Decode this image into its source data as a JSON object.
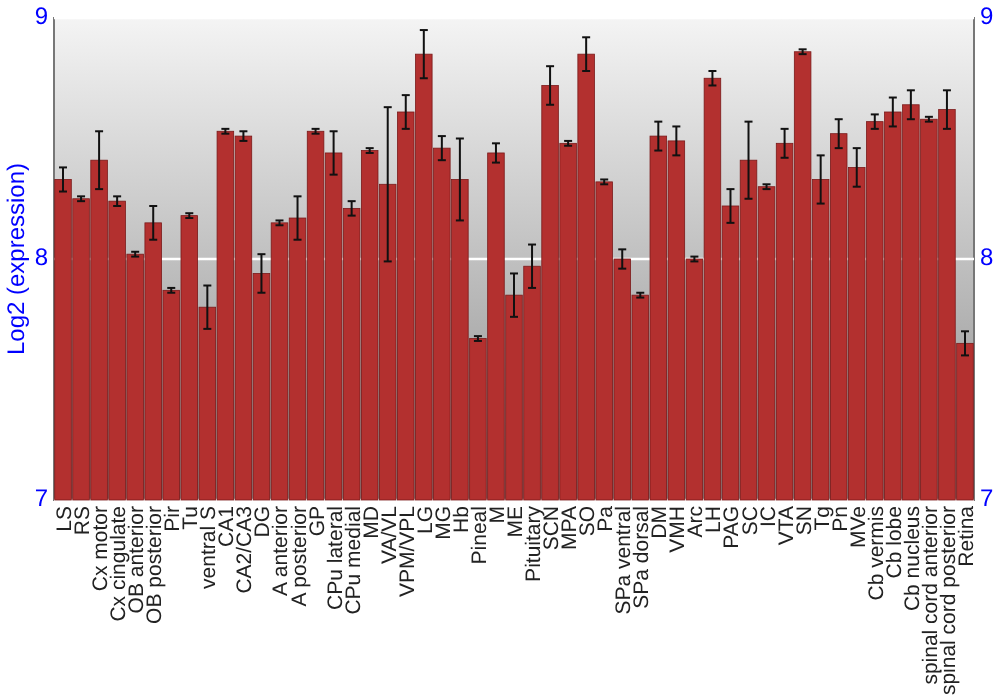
{
  "chart_data": {
    "type": "bar",
    "ylabel": "Log2 (expression)",
    "categories": [
      "LS",
      "RS",
      "Cx motor",
      "Cx cingulate",
      "OB anterior",
      "OB posterior",
      "Pir",
      "Tu",
      "ventral S",
      "CA1",
      "CA2/CA3",
      "DG",
      "A anterior",
      "A posterior",
      "GP",
      "CPu lateral",
      "CPu medial",
      "MD",
      "VA/VL",
      "VPM/VPL",
      "LG",
      "MG",
      "Hb",
      "Pineal",
      "M",
      "ME",
      "Pituitary",
      "SCN",
      "MPA",
      "SO",
      "Pa",
      "SPa ventral",
      "SPa dorsal",
      "DM",
      "VMH",
      "Arc",
      "LH",
      "PAG",
      "SC",
      "IC",
      "VTA",
      "SN",
      "Tg",
      "Pn",
      "MVe",
      "Cb vermis",
      "Cb lobe",
      "Cb nucleus",
      "spinal cord anterior",
      "spinal cord posterior",
      "Retina"
    ],
    "values": [
      8.33,
      8.25,
      8.41,
      8.24,
      8.02,
      8.15,
      7.87,
      8.18,
      7.8,
      8.53,
      8.51,
      7.94,
      8.15,
      8.17,
      8.53,
      8.44,
      8.21,
      8.45,
      8.31,
      8.61,
      8.85,
      8.46,
      8.33,
      7.67,
      8.44,
      7.85,
      7.97,
      8.72,
      8.48,
      8.85,
      8.32,
      8.0,
      7.85,
      8.51,
      8.49,
      8.0,
      8.75,
      8.22,
      8.41,
      8.3,
      8.48,
      8.86,
      8.33,
      8.52,
      8.38,
      8.57,
      8.61,
      8.64,
      8.58,
      8.62,
      7.65
    ],
    "errors": [
      0.05,
      0.01,
      0.12,
      0.02,
      0.01,
      0.07,
      0.01,
      0.01,
      0.09,
      0.01,
      0.02,
      0.08,
      0.01,
      0.09,
      0.01,
      0.09,
      0.03,
      0.01,
      0.32,
      0.07,
      0.1,
      0.05,
      0.17,
      0.01,
      0.04,
      0.09,
      0.09,
      0.08,
      0.01,
      0.07,
      0.01,
      0.04,
      0.01,
      0.06,
      0.06,
      0.01,
      0.03,
      0.07,
      0.16,
      0.01,
      0.06,
      0.01,
      0.1,
      0.06,
      0.08,
      0.03,
      0.06,
      0.06,
      0.01,
      0.08,
      0.05
    ],
    "color": "#b3302f",
    "ylim": [
      7,
      9
    ],
    "yticks": [
      7,
      8,
      9
    ],
    "y2lim": [
      7,
      9
    ],
    "y2ticks": [
      7,
      8,
      9
    ],
    "grid": "y"
  }
}
